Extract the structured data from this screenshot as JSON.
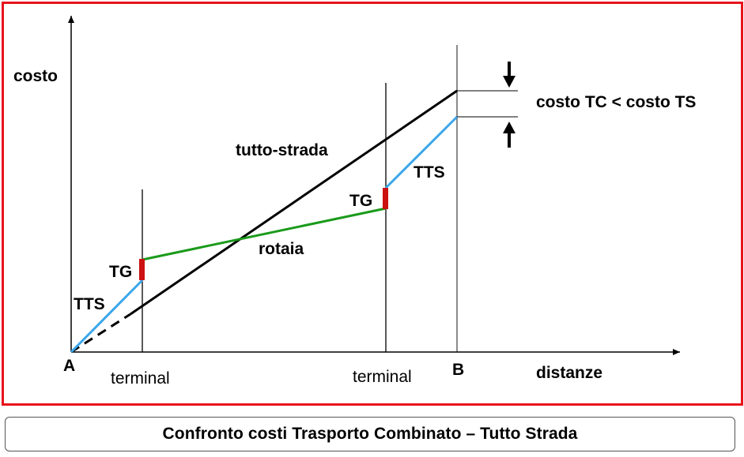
{
  "labels": {
    "y_axis": "costo",
    "x_axis": "distanze",
    "point_a": "A",
    "point_b": "B",
    "terminal_1": "terminal",
    "terminal_2": "terminal",
    "road": "tutto-strada",
    "rail": "rotaia",
    "tg_1": "TG",
    "tg_2": "TG",
    "tts_1": "TTS",
    "tts_2": "TTS",
    "comparison": "costo TC < costo TS"
  },
  "caption": "Confronto costi Trasporto Combinato – Tutto Strada",
  "colors": {
    "frame": "#e8141b",
    "road_line": "#000000",
    "rail_line": "#1a9a1a",
    "tts_line": "#3aa6ea",
    "tg_marker": "#cc1111"
  }
}
